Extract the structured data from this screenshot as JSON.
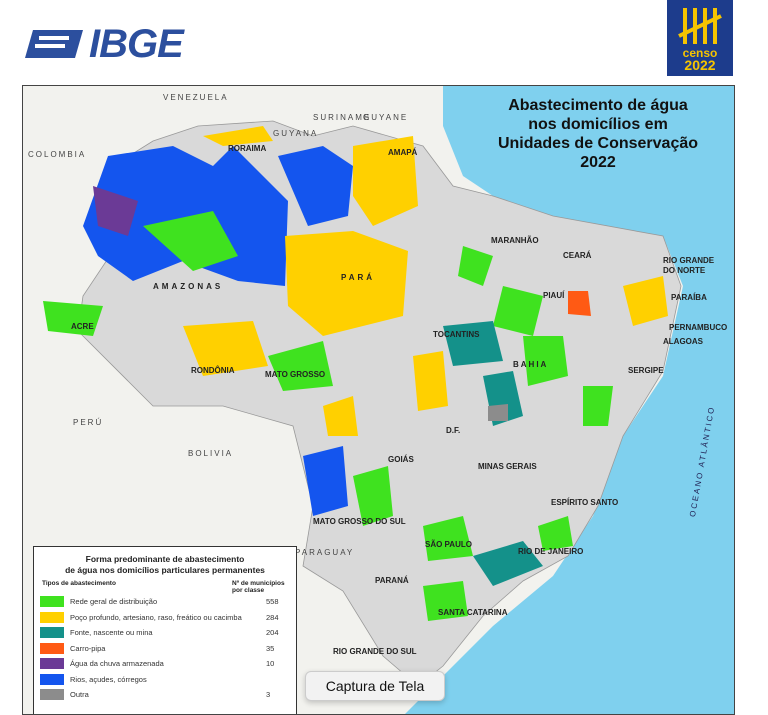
{
  "header": {
    "logo_text": "IBGE",
    "censo_text": "censo",
    "censo_year": "2022"
  },
  "map": {
    "title_lines": [
      "Abastecimento de água",
      "nos domicílios em",
      "Unidades de Conservação",
      "2022"
    ],
    "countries": [
      "VENEZUELA",
      "GUYANA",
      "SURINAME",
      "GUYANE",
      "COLOMBIA",
      "PERÚ",
      "BOLIVIA",
      "PARAGUAY"
    ],
    "states": [
      "RORAIMA",
      "AMAPÁ",
      "AMAZONAS",
      "PARÁ",
      "MARANHÃO",
      "CEARÁ",
      "RIO GRANDE DO NORTE",
      "PARAÍBA",
      "PERNAMBUCO",
      "ALAGOAS",
      "SERGIPE",
      "BAHIA",
      "PIAUÍ",
      "TOCANTINS",
      "ACRE",
      "RONDÔNIA",
      "MATO GROSSO",
      "GOIÁS",
      "D.F.",
      "MINAS GERAIS",
      "MATO GROSSO DO SUL",
      "ESPÍRITO SANTO",
      "SÃO PAULO",
      "RIO DE JANEIRO",
      "PARANÁ",
      "SANTA CATARINA",
      "RIO GRANDE DO SUL"
    ],
    "ocean": "OCEANO ATLÂNTICO",
    "colors": {
      "ocean": "#7fd0ee",
      "land": "#f2f2ee",
      "brazil": "#d9d9d9",
      "frame": "#444444"
    }
  },
  "legend": {
    "title_lines": [
      "Forma predominante de abastecimento",
      "de água nos domicílios particulares permanentes"
    ],
    "col_type": "Tipos de abastecimento",
    "col_count": "Nº de municípios por classe",
    "items": [
      {
        "label": "Rede geral de distribuição",
        "count": "558",
        "color": "#3fe21f"
      },
      {
        "label": "Poço profundo, artesiano, raso, freático ou cacimba",
        "count": "284",
        "color": "#ffd000"
      },
      {
        "label": "Fonte, nascente ou mina",
        "count": "204",
        "color": "#14918a"
      },
      {
        "label": "Carro-pipa",
        "count": "35",
        "color": "#ff5a14"
      },
      {
        "label": "Água da chuva armazenada",
        "count": "10",
        "color": "#6b3a96"
      },
      {
        "label": "Rios, açudes, córregos",
        "count": "",
        "color": "#1455ee"
      },
      {
        "label": "Outra",
        "count": "3",
        "color": "#8c8c8c"
      }
    ]
  },
  "tooltip": {
    "text": "Captura de Tela"
  }
}
